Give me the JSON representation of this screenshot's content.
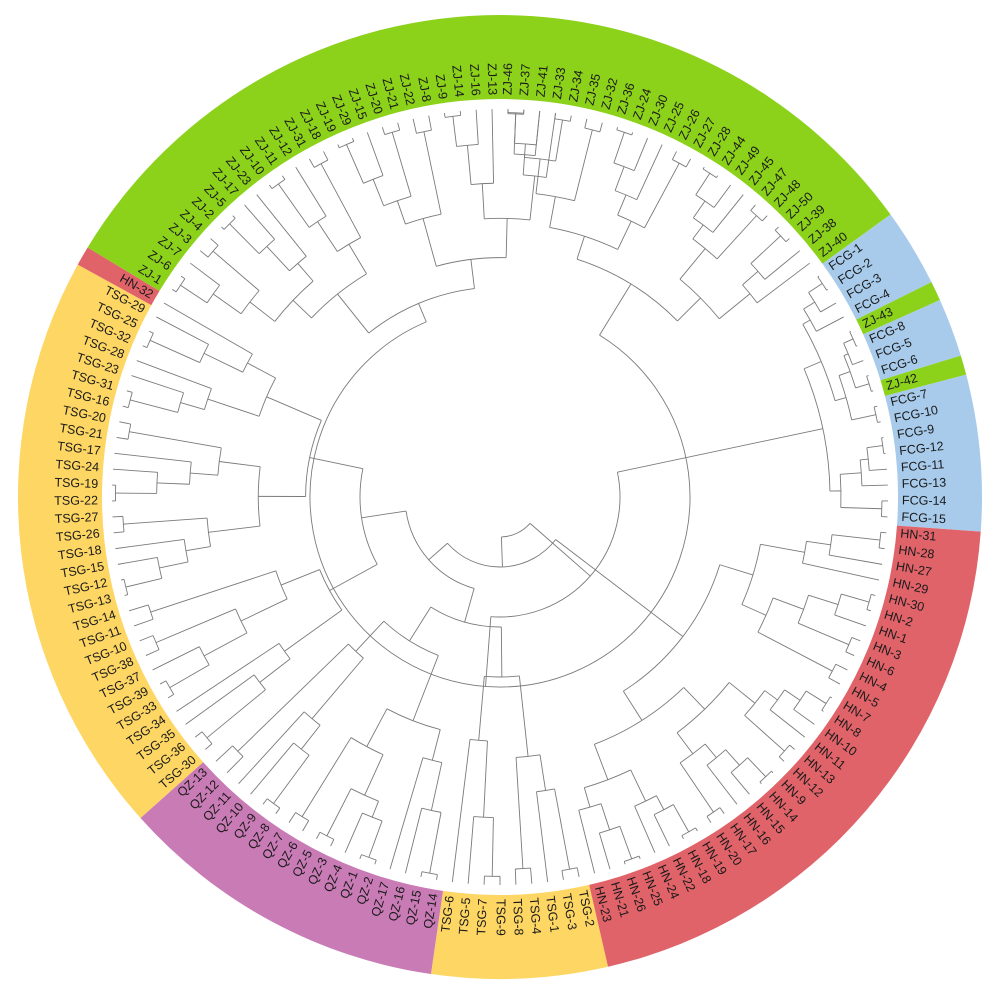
{
  "tree": {
    "group_colors": {
      "ZJ": "#8CD11A",
      "FCG": "#A8CBEB",
      "HN": "#E0636A",
      "QZ": "#C97BB6",
      "TSG": "#FDD663"
    },
    "leaves": [
      {
        "label": "ZJ-46",
        "group": "ZJ"
      },
      {
        "label": "ZJ-37",
        "group": "ZJ"
      },
      {
        "label": "ZJ-41",
        "group": "ZJ"
      },
      {
        "label": "ZJ-33",
        "group": "ZJ"
      },
      {
        "label": "ZJ-34",
        "group": "ZJ"
      },
      {
        "label": "ZJ-35",
        "group": "ZJ"
      },
      {
        "label": "ZJ-32",
        "group": "ZJ"
      },
      {
        "label": "ZJ-36",
        "group": "ZJ"
      },
      {
        "label": "ZJ-24",
        "group": "ZJ"
      },
      {
        "label": "ZJ-30",
        "group": "ZJ"
      },
      {
        "label": "ZJ-25",
        "group": "ZJ"
      },
      {
        "label": "ZJ-26",
        "group": "ZJ"
      },
      {
        "label": "ZJ-27",
        "group": "ZJ"
      },
      {
        "label": "ZJ-28",
        "group": "ZJ"
      },
      {
        "label": "ZJ-44",
        "group": "ZJ"
      },
      {
        "label": "ZJ-49",
        "group": "ZJ"
      },
      {
        "label": "ZJ-45",
        "group": "ZJ"
      },
      {
        "label": "ZJ-47",
        "group": "ZJ"
      },
      {
        "label": "ZJ-48",
        "group": "ZJ"
      },
      {
        "label": "ZJ-50",
        "group": "ZJ"
      },
      {
        "label": "ZJ-39",
        "group": "ZJ"
      },
      {
        "label": "ZJ-38",
        "group": "ZJ"
      },
      {
        "label": "ZJ-40",
        "group": "ZJ"
      },
      {
        "label": "FCG-1",
        "group": "FCG"
      },
      {
        "label": "FCG-2",
        "group": "FCG"
      },
      {
        "label": "FCG-3",
        "group": "FCG"
      },
      {
        "label": "FCG-4",
        "group": "FCG"
      },
      {
        "label": "ZJ-43",
        "group": "ZJ"
      },
      {
        "label": "FCG-8",
        "group": "FCG"
      },
      {
        "label": "FCG-5",
        "group": "FCG"
      },
      {
        "label": "FCG-6",
        "group": "FCG"
      },
      {
        "label": "ZJ-42",
        "group": "ZJ"
      },
      {
        "label": "FCG-7",
        "group": "FCG"
      },
      {
        "label": "FCG-10",
        "group": "FCG"
      },
      {
        "label": "FCG-9",
        "group": "FCG"
      },
      {
        "label": "FCG-12",
        "group": "FCG"
      },
      {
        "label": "FCG-11",
        "group": "FCG"
      },
      {
        "label": "FCG-13",
        "group": "FCG"
      },
      {
        "label": "FCG-14",
        "group": "FCG"
      },
      {
        "label": "FCG-15",
        "group": "FCG"
      },
      {
        "label": "HN-31",
        "group": "HN"
      },
      {
        "label": "HN-28",
        "group": "HN"
      },
      {
        "label": "HN-27",
        "group": "HN"
      },
      {
        "label": "HN-29",
        "group": "HN"
      },
      {
        "label": "HN-30",
        "group": "HN"
      },
      {
        "label": "HN-2",
        "group": "HN"
      },
      {
        "label": "HN-1",
        "group": "HN"
      },
      {
        "label": "HN-3",
        "group": "HN"
      },
      {
        "label": "HN-6",
        "group": "HN"
      },
      {
        "label": "HN-4",
        "group": "HN"
      },
      {
        "label": "HN-5",
        "group": "HN"
      },
      {
        "label": "HN-7",
        "group": "HN"
      },
      {
        "label": "HN-8",
        "group": "HN"
      },
      {
        "label": "HN-10",
        "group": "HN"
      },
      {
        "label": "HN-11",
        "group": "HN"
      },
      {
        "label": "HN-13",
        "group": "HN"
      },
      {
        "label": "HN-12",
        "group": "HN"
      },
      {
        "label": "HN-9",
        "group": "HN"
      },
      {
        "label": "HN-14",
        "group": "HN"
      },
      {
        "label": "HN-15",
        "group": "HN"
      },
      {
        "label": "HN-16",
        "group": "HN"
      },
      {
        "label": "HN-17",
        "group": "HN"
      },
      {
        "label": "HN-20",
        "group": "HN"
      },
      {
        "label": "HN-19",
        "group": "HN"
      },
      {
        "label": "HN-18",
        "group": "HN"
      },
      {
        "label": "HN-22",
        "group": "HN"
      },
      {
        "label": "HN-24",
        "group": "HN"
      },
      {
        "label": "HN-25",
        "group": "HN"
      },
      {
        "label": "HN-26",
        "group": "HN"
      },
      {
        "label": "HN-21",
        "group": "HN"
      },
      {
        "label": "HN-23",
        "group": "HN"
      },
      {
        "label": "TSG-2",
        "group": "TSG"
      },
      {
        "label": "TSG-3",
        "group": "TSG"
      },
      {
        "label": "TSG-1",
        "group": "TSG"
      },
      {
        "label": "TSG-4",
        "group": "TSG"
      },
      {
        "label": "TSG-8",
        "group": "TSG"
      },
      {
        "label": "TSG-9",
        "group": "TSG"
      },
      {
        "label": "TSG-7",
        "group": "TSG"
      },
      {
        "label": "TSG-5",
        "group": "TSG"
      },
      {
        "label": "TSG-6",
        "group": "TSG"
      },
      {
        "label": "QZ-14",
        "group": "QZ"
      },
      {
        "label": "QZ-15",
        "group": "QZ"
      },
      {
        "label": "QZ-16",
        "group": "QZ"
      },
      {
        "label": "QZ-17",
        "group": "QZ"
      },
      {
        "label": "QZ-2",
        "group": "QZ"
      },
      {
        "label": "QZ-1",
        "group": "QZ"
      },
      {
        "label": "QZ-4",
        "group": "QZ"
      },
      {
        "label": "QZ-3",
        "group": "QZ"
      },
      {
        "label": "QZ-5",
        "group": "QZ"
      },
      {
        "label": "QZ-6",
        "group": "QZ"
      },
      {
        "label": "QZ-7",
        "group": "QZ"
      },
      {
        "label": "QZ-8",
        "group": "QZ"
      },
      {
        "label": "QZ-9",
        "group": "QZ"
      },
      {
        "label": "QZ-10",
        "group": "QZ"
      },
      {
        "label": "QZ-11",
        "group": "QZ"
      },
      {
        "label": "QZ-12",
        "group": "QZ"
      },
      {
        "label": "QZ-13",
        "group": "QZ"
      },
      {
        "label": "TSG-30",
        "group": "TSG"
      },
      {
        "label": "TSG-36",
        "group": "TSG"
      },
      {
        "label": "TSG-35",
        "group": "TSG"
      },
      {
        "label": "TSG-34",
        "group": "TSG"
      },
      {
        "label": "TSG-33",
        "group": "TSG"
      },
      {
        "label": "TSG-39",
        "group": "TSG"
      },
      {
        "label": "TSG-37",
        "group": "TSG"
      },
      {
        "label": "TSG-38",
        "group": "TSG"
      },
      {
        "label": "TSG-10",
        "group": "TSG"
      },
      {
        "label": "TSG-11",
        "group": "TSG"
      },
      {
        "label": "TSG-14",
        "group": "TSG"
      },
      {
        "label": "TSG-13",
        "group": "TSG"
      },
      {
        "label": "TSG-12",
        "group": "TSG"
      },
      {
        "label": "TSG-15",
        "group": "TSG"
      },
      {
        "label": "TSG-18",
        "group": "TSG"
      },
      {
        "label": "TSG-26",
        "group": "TSG"
      },
      {
        "label": "TSG-27",
        "group": "TSG"
      },
      {
        "label": "TSG-22",
        "group": "TSG"
      },
      {
        "label": "TSG-19",
        "group": "TSG"
      },
      {
        "label": "TSG-24",
        "group": "TSG"
      },
      {
        "label": "TSG-17",
        "group": "TSG"
      },
      {
        "label": "TSG-21",
        "group": "TSG"
      },
      {
        "label": "TSG-20",
        "group": "TSG"
      },
      {
        "label": "TSG-16",
        "group": "TSG"
      },
      {
        "label": "TSG-31",
        "group": "TSG"
      },
      {
        "label": "TSG-23",
        "group": "TSG"
      },
      {
        "label": "TSG-28",
        "group": "TSG"
      },
      {
        "label": "TSG-32",
        "group": "TSG"
      },
      {
        "label": "TSG-25",
        "group": "TSG"
      },
      {
        "label": "TSG-29",
        "group": "TSG"
      },
      {
        "label": "HN-32",
        "group": "HN"
      },
      {
        "label": "ZJ-1",
        "group": "ZJ"
      },
      {
        "label": "ZJ-6",
        "group": "ZJ"
      },
      {
        "label": "ZJ-7",
        "group": "ZJ"
      },
      {
        "label": "ZJ-3",
        "group": "ZJ"
      },
      {
        "label": "ZJ-4",
        "group": "ZJ"
      },
      {
        "label": "ZJ-2",
        "group": "ZJ"
      },
      {
        "label": "ZJ-5",
        "group": "ZJ"
      },
      {
        "label": "ZJ-17",
        "group": "ZJ"
      },
      {
        "label": "ZJ-23",
        "group": "ZJ"
      },
      {
        "label": "ZJ-10",
        "group": "ZJ"
      },
      {
        "label": "ZJ-11",
        "group": "ZJ"
      },
      {
        "label": "ZJ-12",
        "group": "ZJ"
      },
      {
        "label": "ZJ-31",
        "group": "ZJ"
      },
      {
        "label": "ZJ-18",
        "group": "ZJ"
      },
      {
        "label": "ZJ-19",
        "group": "ZJ"
      },
      {
        "label": "ZJ-29",
        "group": "ZJ"
      },
      {
        "label": "ZJ-15",
        "group": "ZJ"
      },
      {
        "label": "ZJ-20",
        "group": "ZJ"
      },
      {
        "label": "ZJ-21",
        "group": "ZJ"
      },
      {
        "label": "ZJ-22",
        "group": "ZJ"
      },
      {
        "label": "ZJ-8",
        "group": "ZJ"
      },
      {
        "label": "ZJ-9",
        "group": "ZJ"
      },
      {
        "label": "ZJ-14",
        "group": "ZJ"
      },
      {
        "label": "ZJ-16",
        "group": "ZJ"
      },
      {
        "label": "ZJ-13",
        "group": "ZJ"
      }
    ]
  }
}
